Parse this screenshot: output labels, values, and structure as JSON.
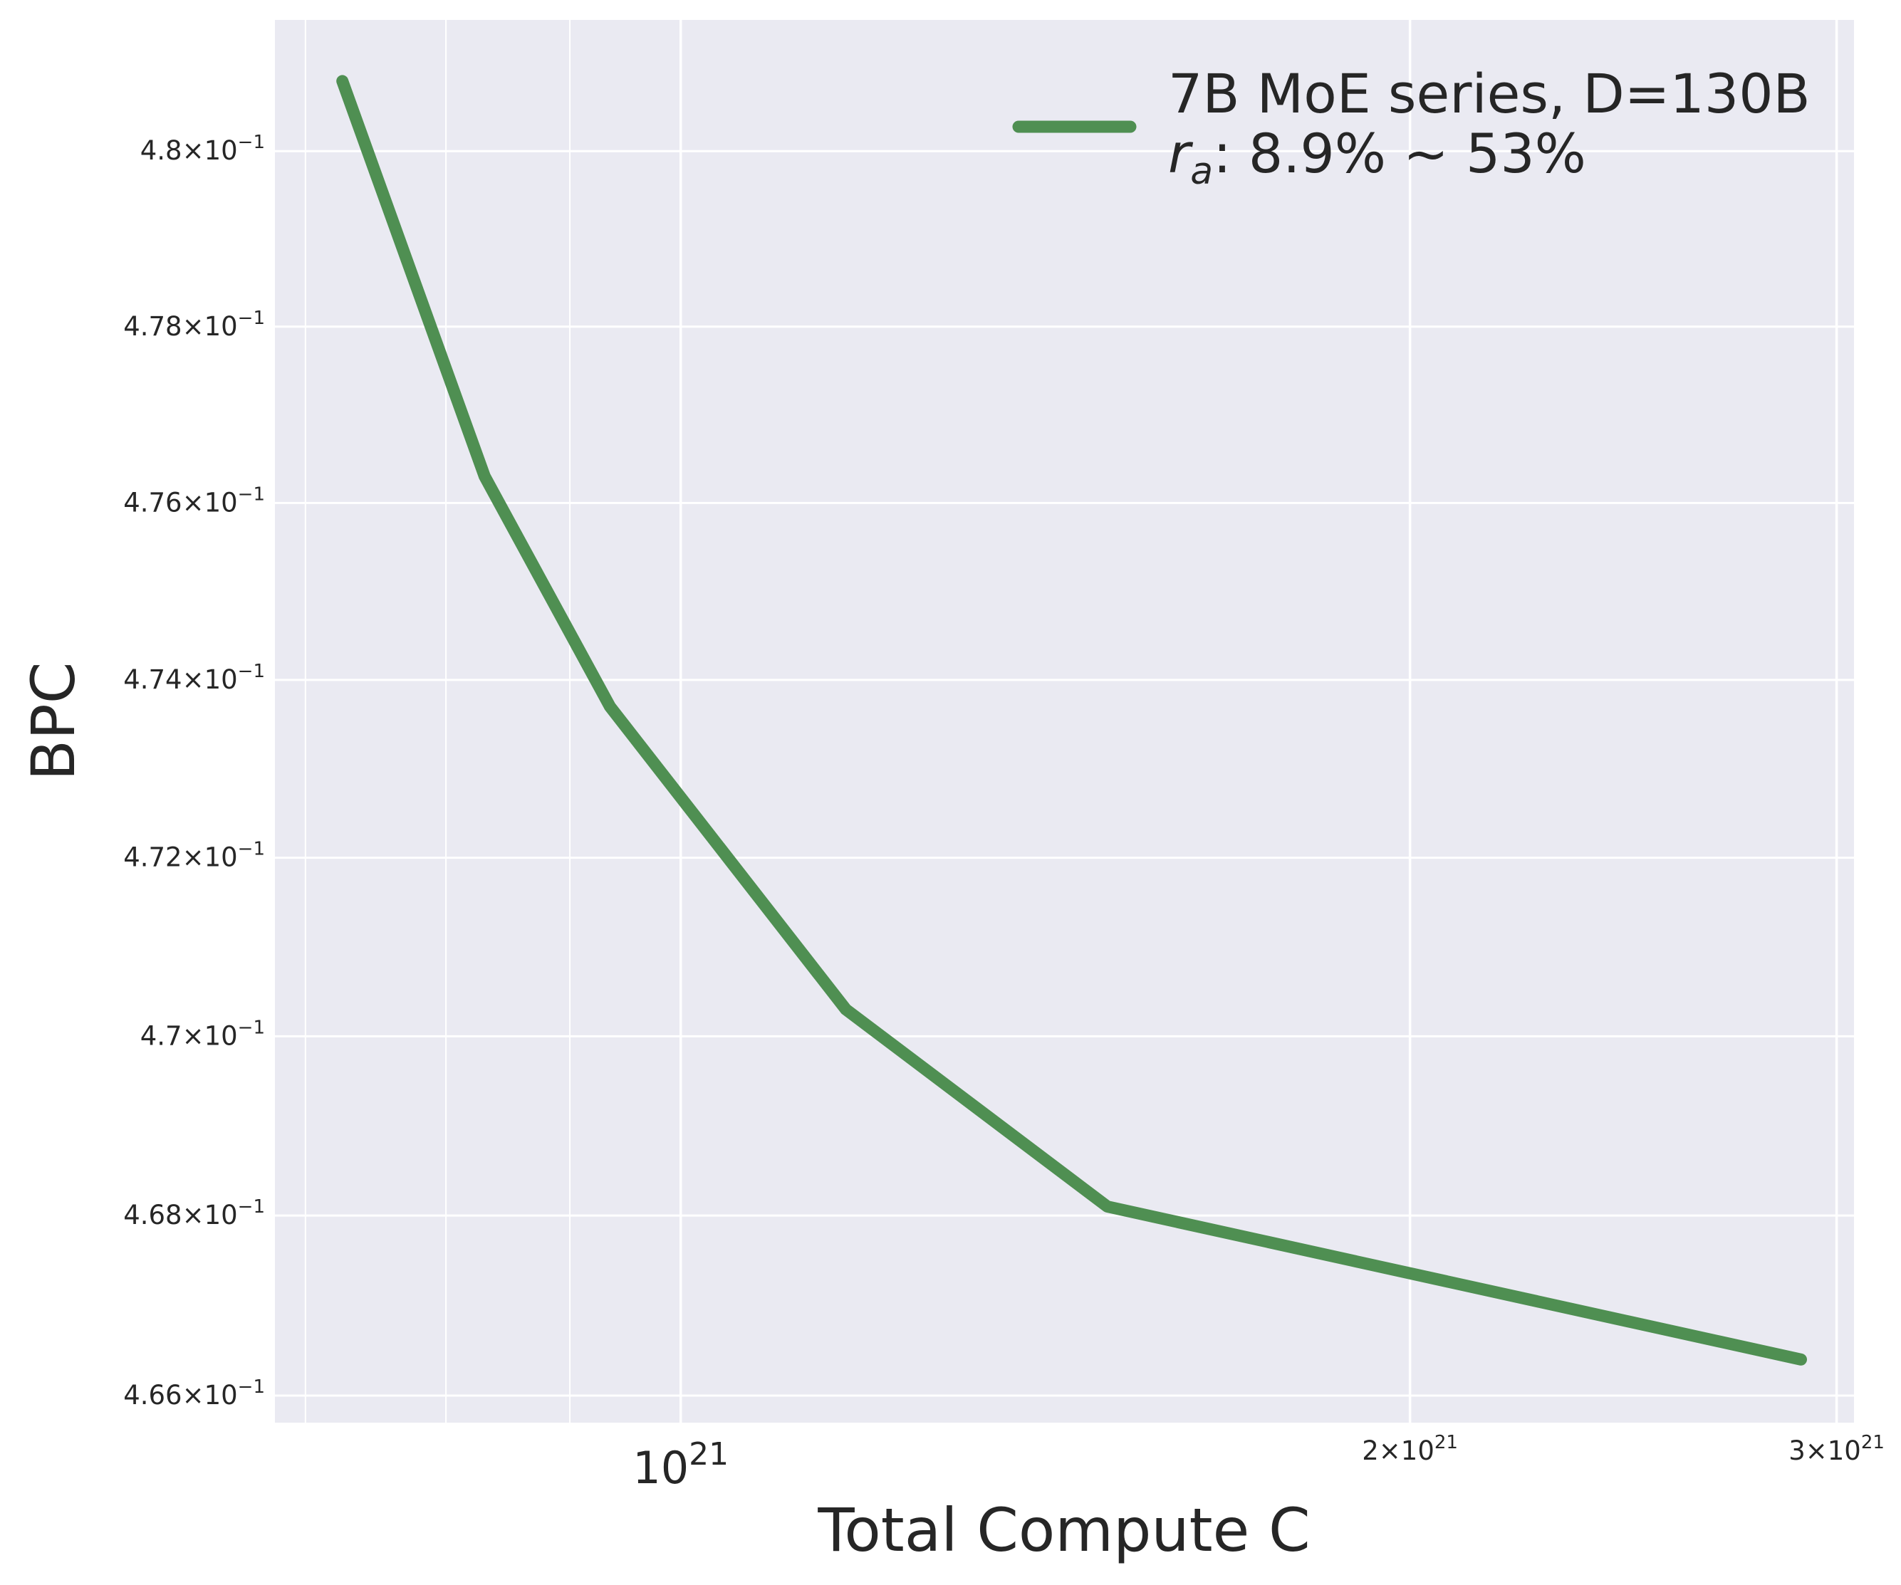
{
  "chart_data": {
    "type": "line",
    "xlabel": "Total Compute C",
    "ylabel": "BPC",
    "x_scale": "log",
    "y_scale": "log",
    "xlim": [
      6.8e+20,
      3.05e+21
    ],
    "ylim": [
      0.4657,
      0.4815
    ],
    "grid": true,
    "legend_position": "top-right",
    "colors": {
      "background": "#eaeaf2",
      "grid": "#ffffff",
      "series": "#4f8f52"
    },
    "x_major_ticks": [
      {
        "value": 1e+21,
        "mantissa": "",
        "exponent": "21"
      },
      {
        "value": 2e+21,
        "mantissa": "2",
        "exponent": "21"
      },
      {
        "value": 3e+21,
        "mantissa": "3",
        "exponent": "21"
      }
    ],
    "x_minor_ticks": [
      7e+20,
      8e+20,
      9e+20
    ],
    "y_ticks": [
      {
        "value": 0.466,
        "mantissa": "4.66",
        "exponent": "−1"
      },
      {
        "value": 0.468,
        "mantissa": "4.68",
        "exponent": "−1"
      },
      {
        "value": 0.47,
        "mantissa": "4.7",
        "exponent": "−1"
      },
      {
        "value": 0.472,
        "mantissa": "4.72",
        "exponent": "−1"
      },
      {
        "value": 0.474,
        "mantissa": "4.74",
        "exponent": "−1"
      },
      {
        "value": 0.476,
        "mantissa": "4.76",
        "exponent": "−1"
      },
      {
        "value": 0.478,
        "mantissa": "4.78",
        "exponent": "−1"
      },
      {
        "value": 0.48,
        "mantissa": "4.8",
        "exponent": "−1"
      }
    ],
    "series": [
      {
        "name": "7B MoE series, D=130B",
        "name_line2": ": 8.9% ~ 53%",
        "name_line2_symbol": "r",
        "name_line2_subscript": "a",
        "x": [
          7.25e+20,
          8.3e+20,
          9.35e+20,
          1.17e+21,
          1.5e+21,
          2.9e+21
        ],
        "y": [
          0.4808,
          0.4763,
          0.4737,
          0.4703,
          0.4681,
          0.4664
        ]
      }
    ]
  }
}
